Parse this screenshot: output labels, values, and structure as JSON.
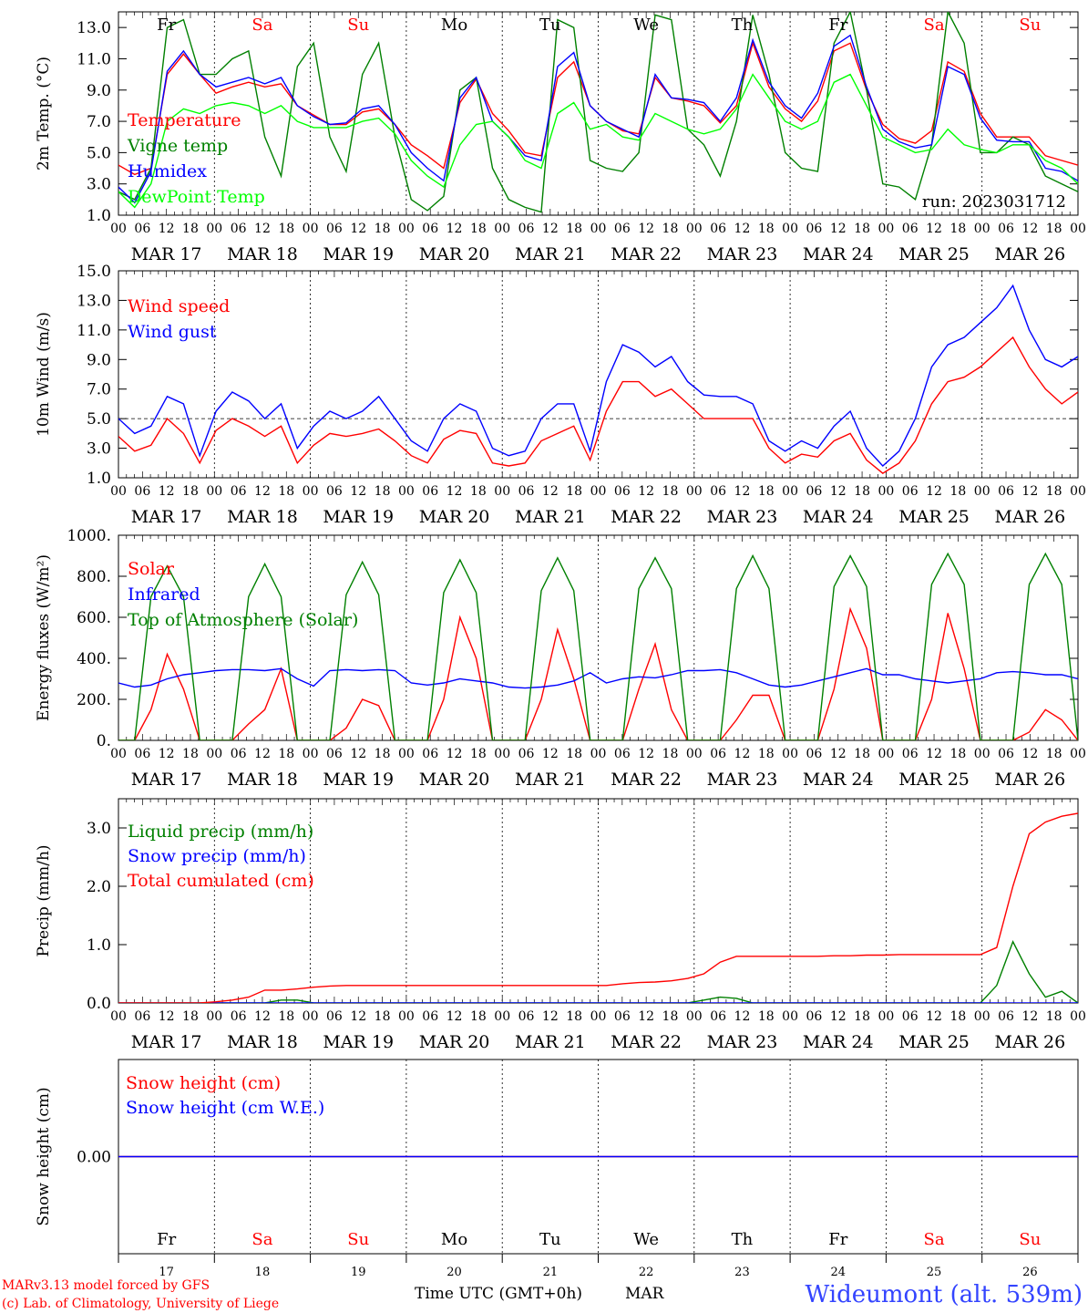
{
  "days": {
    "labels": [
      "MAR 17",
      "MAR 18",
      "MAR 19",
      "MAR 20",
      "MAR 21",
      "MAR 22",
      "MAR 23",
      "MAR 24",
      "MAR 25",
      "MAR 26"
    ],
    "weekdays": [
      "Fr",
      "Sa",
      "Su",
      "Mo",
      "Tu",
      "We",
      "Th",
      "Fr",
      "Sa",
      "Su"
    ],
    "weekday_colors": [
      "#000000",
      "#ff0000",
      "#ff0000",
      "#000000",
      "#000000",
      "#000000",
      "#000000",
      "#000000",
      "#ff0000",
      "#ff0000"
    ],
    "numbers": [
      "17",
      "18",
      "19",
      "20",
      "21",
      "22",
      "23",
      "24",
      "25",
      "26"
    ],
    "hour_ticks": [
      "00",
      "06",
      "12",
      "18"
    ],
    "final_tick": "00"
  },
  "footer": {
    "credit_line1": "MARv3.13 model forced by GFS",
    "credit_line2": "(c) Lab. of Climatology, University of Liege",
    "xlabel": "Time UTC (GMT+0h)",
    "month": "MAR",
    "station": "Wideumont (alt. 539m)"
  },
  "chart_data": [
    {
      "type": "line",
      "ylabel": "2m Temp. (°C)",
      "ylim": [
        1.0,
        14.0
      ],
      "ticks": [
        1.0,
        3.0,
        5.0,
        7.0,
        9.0,
        11.0,
        13.0
      ],
      "tick_labels": [
        "1.0",
        "3.0",
        "5.0",
        "7.0",
        "9.0",
        "11.0",
        "13.0"
      ],
      "annotation": "run: 2023031712",
      "x_days": 10,
      "series": [
        {
          "name": "Temperature",
          "color": "#ff0000",
          "values": [
            4.2,
            3.6,
            4.0,
            10.0,
            11.3,
            10.0,
            8.8,
            9.2,
            9.5,
            9.2,
            9.4,
            8.0,
            7.4,
            6.8,
            6.8,
            7.6,
            7.8,
            6.8,
            5.5,
            4.8,
            4.0,
            8.2,
            9.7,
            7.5,
            6.4,
            5.0,
            4.8,
            9.8,
            10.8,
            8.0,
            7.0,
            6.4,
            6.2,
            9.8,
            8.5,
            8.3,
            8.0,
            6.9,
            8.0,
            12.0,
            9.2,
            7.8,
            7.0,
            8.3,
            11.5,
            12.0,
            9.0,
            6.8,
            5.9,
            5.6,
            6.4,
            10.8,
            10.2,
            7.5,
            6.0,
            6.0,
            6.0,
            4.8,
            4.5,
            4.2
          ]
        },
        {
          "name": "Vigne temp",
          "color": "#008000",
          "values": [
            2.5,
            2.0,
            4.0,
            13.0,
            13.5,
            10.0,
            10.0,
            11.0,
            11.5,
            6.0,
            3.5,
            10.5,
            12.0,
            6.0,
            3.8,
            10.0,
            12.0,
            6.0,
            2.0,
            1.3,
            2.2,
            9.0,
            9.8,
            4.0,
            2.0,
            1.5,
            1.2,
            13.5,
            13.0,
            4.5,
            4.0,
            3.8,
            5.0,
            13.8,
            13.5,
            6.5,
            5.5,
            3.5,
            7.0,
            13.8,
            10.0,
            5.0,
            4.0,
            3.8,
            12.0,
            14.0,
            9.0,
            3.0,
            2.8,
            2.0,
            5.5,
            14.0,
            12.0,
            5.0,
            5.0,
            6.0,
            5.5,
            3.5,
            3.0,
            2.5
          ]
        },
        {
          "name": "Humidex",
          "color": "#0000ff",
          "values": [
            2.8,
            1.8,
            3.8,
            10.2,
            11.5,
            10.0,
            9.2,
            9.5,
            9.8,
            9.4,
            9.8,
            8.0,
            7.3,
            6.8,
            6.9,
            7.8,
            8.0,
            6.8,
            5.0,
            4.0,
            3.2,
            8.5,
            9.8,
            7.0,
            6.0,
            4.8,
            4.5,
            10.5,
            11.4,
            8.0,
            7.0,
            6.5,
            6.0,
            10.0,
            8.5,
            8.4,
            8.2,
            7.0,
            8.5,
            12.2,
            9.5,
            8.0,
            7.2,
            8.8,
            11.8,
            12.5,
            9.2,
            6.5,
            5.7,
            5.3,
            5.5,
            10.5,
            10.0,
            7.2,
            5.8,
            5.7,
            5.7,
            4.0,
            3.8,
            3.2
          ]
        },
        {
          "name": "DewPoint Temp",
          "color": "#00ff00",
          "values": [
            2.5,
            1.5,
            3.0,
            7.0,
            7.8,
            7.5,
            8.0,
            8.2,
            8.0,
            7.5,
            8.0,
            7.0,
            6.6,
            6.6,
            6.6,
            7.0,
            7.2,
            6.2,
            4.5,
            3.5,
            2.8,
            5.5,
            6.8,
            7.0,
            6.0,
            4.5,
            4.0,
            7.5,
            8.2,
            6.5,
            6.8,
            6.0,
            5.8,
            7.5,
            7.0,
            6.5,
            6.2,
            6.5,
            7.8,
            10.0,
            8.5,
            7.0,
            6.5,
            7.0,
            9.5,
            10.0,
            8.0,
            6.0,
            5.5,
            5.0,
            5.2,
            6.5,
            5.5,
            5.2,
            5.0,
            5.5,
            5.5,
            4.5,
            4.0,
            3.0
          ]
        }
      ]
    },
    {
      "type": "line",
      "ylabel": "10m Wind (m/s)",
      "ylim": [
        1.0,
        15.0
      ],
      "ticks": [
        1.0,
        3.0,
        5.0,
        7.0,
        9.0,
        11.0,
        13.0,
        15.0
      ],
      "tick_labels": [
        "1.0",
        "3.0",
        "5.0",
        "7.0",
        "9.0",
        "11.0",
        "13.0",
        "15.0"
      ],
      "reference_line": 5.0,
      "x_days": 10,
      "series": [
        {
          "name": "Wind speed",
          "color": "#ff0000",
          "values": [
            3.8,
            2.8,
            3.2,
            5.0,
            4.0,
            2.0,
            4.2,
            5.0,
            4.5,
            3.8,
            4.5,
            2.0,
            3.2,
            4.0,
            3.8,
            4.0,
            4.3,
            3.5,
            2.5,
            2.0,
            3.6,
            4.2,
            4.0,
            2.0,
            1.8,
            2.0,
            3.5,
            4.0,
            4.5,
            2.2,
            5.5,
            7.5,
            7.5,
            6.5,
            7.0,
            6.0,
            5.0,
            5.0,
            5.0,
            5.0,
            3.0,
            2.0,
            2.6,
            2.4,
            3.5,
            4.0,
            2.2,
            1.3,
            2.0,
            3.5,
            6.0,
            7.5,
            7.8,
            8.5,
            9.5,
            10.5,
            8.5,
            7.0,
            6.0,
            6.8
          ]
        },
        {
          "name": "Wind gust",
          "color": "#0000ff",
          "values": [
            5.0,
            4.0,
            4.5,
            6.5,
            6.0,
            2.5,
            5.5,
            6.8,
            6.2,
            5.0,
            6.0,
            3.0,
            4.5,
            5.5,
            5.0,
            5.5,
            6.5,
            5.0,
            3.5,
            2.8,
            5.0,
            6.0,
            5.5,
            3.0,
            2.5,
            2.8,
            5.0,
            6.0,
            6.0,
            2.8,
            7.5,
            10.0,
            9.5,
            8.5,
            9.2,
            7.5,
            6.6,
            6.5,
            6.5,
            6.0,
            3.5,
            2.8,
            3.5,
            3.0,
            4.5,
            5.5,
            3.0,
            1.8,
            2.8,
            5.0,
            8.5,
            10.0,
            10.5,
            11.5,
            12.5,
            14.0,
            11.0,
            9.0,
            8.5,
            9.2
          ]
        }
      ]
    },
    {
      "type": "line",
      "ylabel": "Energy fluxes (W/m²)",
      "ylim": [
        0,
        1000
      ],
      "ticks": [
        0,
        200,
        400,
        600,
        800,
        1000
      ],
      "tick_labels": [
        "0.",
        "200.",
        "400.",
        "600.",
        "800.",
        "1000."
      ],
      "x_days": 10,
      "series": [
        {
          "name": "Solar",
          "color": "#ff0000",
          "values": [
            0,
            0,
            150,
            420,
            250,
            0,
            0,
            0,
            80,
            150,
            350,
            0,
            0,
            0,
            60,
            200,
            170,
            0,
            0,
            0,
            200,
            600,
            400,
            0,
            0,
            0,
            200,
            540,
            300,
            0,
            0,
            0,
            250,
            470,
            150,
            0,
            0,
            0,
            100,
            220,
            220,
            0,
            0,
            0,
            250,
            640,
            450,
            0,
            0,
            0,
            200,
            620,
            350,
            0,
            0,
            0,
            40,
            150,
            100,
            0
          ]
        },
        {
          "name": "Infrared",
          "color": "#0000ff",
          "values": [
            280,
            260,
            270,
            300,
            320,
            330,
            340,
            345,
            345,
            340,
            350,
            300,
            265,
            340,
            345,
            340,
            345,
            340,
            280,
            270,
            280,
            300,
            290,
            280,
            260,
            255,
            260,
            270,
            290,
            330,
            280,
            300,
            310,
            305,
            320,
            340,
            340,
            345,
            330,
            300,
            270,
            260,
            270,
            290,
            310,
            330,
            350,
            320,
            320,
            300,
            290,
            280,
            290,
            300,
            330,
            335,
            330,
            320,
            320,
            300
          ]
        },
        {
          "name": "Top of Atmosphere (Solar)",
          "color": "#008000",
          "values": [
            0,
            0,
            700,
            850,
            700,
            0,
            0,
            0,
            700,
            860,
            700,
            0,
            0,
            0,
            710,
            870,
            710,
            0,
            0,
            0,
            720,
            880,
            720,
            0,
            0,
            0,
            730,
            890,
            730,
            0,
            0,
            0,
            740,
            890,
            740,
            0,
            0,
            0,
            740,
            900,
            740,
            0,
            0,
            0,
            750,
            900,
            750,
            0,
            0,
            0,
            760,
            910,
            760,
            0,
            0,
            0,
            760,
            910,
            760,
            0
          ]
        }
      ]
    },
    {
      "type": "line",
      "ylabel": "Precip (mm/h)",
      "ylim": [
        0,
        3.5
      ],
      "ticks": [
        0,
        1,
        2,
        3
      ],
      "tick_labels": [
        "0.0",
        "1.0",
        "2.0",
        "3.0"
      ],
      "x_days": 10,
      "series": [
        {
          "name": "Liquid precip (mm/h)",
          "color": "#008000",
          "values": [
            0,
            0,
            0,
            0,
            0,
            0,
            0,
            0,
            0,
            0,
            0.05,
            0.05,
            0,
            0,
            0,
            0,
            0,
            0,
            0,
            0,
            0,
            0,
            0,
            0,
            0,
            0,
            0,
            0,
            0,
            0,
            0,
            0,
            0,
            0,
            0,
            0,
            0.05,
            0.1,
            0.08,
            0,
            0,
            0,
            0,
            0,
            0,
            0,
            0,
            0,
            0,
            0,
            0,
            0,
            0,
            0,
            0.3,
            1.05,
            0.5,
            0.1,
            0.2,
            0
          ]
        },
        {
          "name": "Snow precip (mm/h)",
          "color": "#0000ff",
          "values": [
            0,
            0,
            0,
            0,
            0,
            0,
            0,
            0,
            0,
            0,
            0,
            0,
            0,
            0,
            0,
            0,
            0,
            0,
            0,
            0,
            0,
            0,
            0,
            0,
            0,
            0,
            0,
            0,
            0,
            0,
            0,
            0,
            0,
            0,
            0,
            0,
            0,
            0,
            0,
            0,
            0,
            0,
            0,
            0,
            0,
            0,
            0,
            0,
            0,
            0,
            0,
            0,
            0,
            0,
            0,
            0,
            0,
            0,
            0,
            0
          ]
        },
        {
          "name": "Total cumulated (cm)",
          "color": "#ff0000",
          "values": [
            0,
            0,
            0,
            0,
            0,
            0,
            0.02,
            0.05,
            0.1,
            0.22,
            0.22,
            0.24,
            0.27,
            0.29,
            0.3,
            0.3,
            0.3,
            0.3,
            0.3,
            0.3,
            0.3,
            0.3,
            0.3,
            0.3,
            0.3,
            0.3,
            0.3,
            0.3,
            0.3,
            0.3,
            0.3,
            0.33,
            0.35,
            0.36,
            0.38,
            0.42,
            0.5,
            0.7,
            0.8,
            0.8,
            0.8,
            0.8,
            0.8,
            0.8,
            0.81,
            0.81,
            0.82,
            0.82,
            0.83,
            0.83,
            0.83,
            0.83,
            0.83,
            0.83,
            0.95,
            2.0,
            2.9,
            3.1,
            3.2,
            3.25
          ]
        }
      ]
    },
    {
      "type": "line",
      "ylabel": "Snow height (cm)",
      "ylim": [
        -1,
        1
      ],
      "ticks": [
        0
      ],
      "tick_labels": [
        "0.00"
      ],
      "x_days": 10,
      "series": [
        {
          "name": "Snow height (cm)",
          "color": "#ff0000",
          "values": [
            0,
            0,
            0,
            0,
            0,
            0,
            0,
            0,
            0,
            0,
            0,
            0,
            0,
            0,
            0,
            0,
            0,
            0,
            0,
            0,
            0,
            0,
            0,
            0,
            0,
            0,
            0,
            0,
            0,
            0,
            0,
            0,
            0,
            0,
            0,
            0,
            0,
            0,
            0,
            0,
            0,
            0,
            0,
            0,
            0,
            0,
            0,
            0,
            0,
            0,
            0,
            0,
            0,
            0,
            0,
            0,
            0,
            0,
            0,
            0
          ]
        },
        {
          "name": "Snow height (cm W.E.)",
          "color": "#0000ff",
          "values": [
            0,
            0,
            0,
            0,
            0,
            0,
            0,
            0,
            0,
            0,
            0,
            0,
            0,
            0,
            0,
            0,
            0,
            0,
            0,
            0,
            0,
            0,
            0,
            0,
            0,
            0,
            0,
            0,
            0,
            0,
            0,
            0,
            0,
            0,
            0,
            0,
            0,
            0,
            0,
            0,
            0,
            0,
            0,
            0,
            0,
            0,
            0,
            0,
            0,
            0,
            0,
            0,
            0,
            0,
            0,
            0,
            0,
            0,
            0,
            0
          ]
        }
      ]
    }
  ]
}
